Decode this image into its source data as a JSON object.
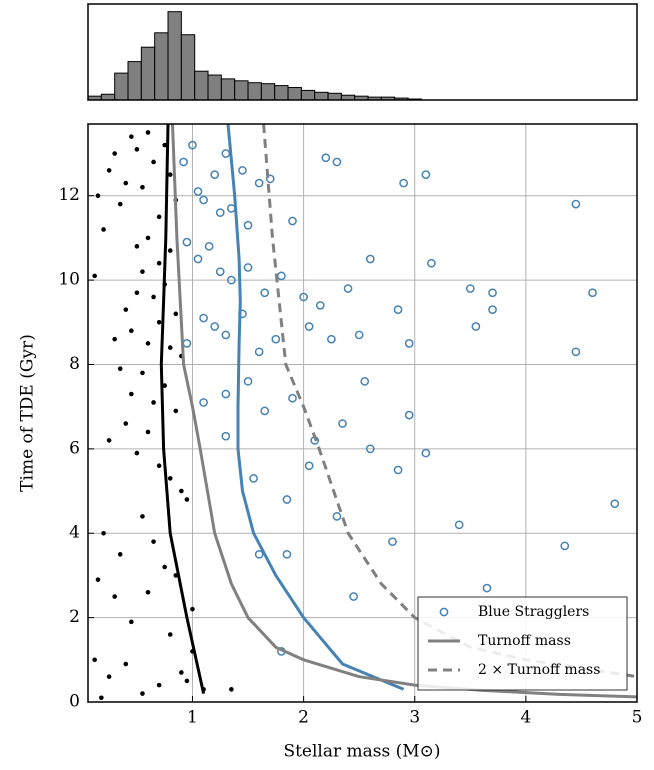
{
  "chart_data": [
    {
      "type": "histogram",
      "color": "#808080",
      "bins": [
        0.06,
        0.18,
        0.3,
        0.42,
        0.54,
        0.66,
        0.78,
        0.9,
        1.02,
        1.14,
        1.26,
        1.38,
        1.5,
        1.62,
        1.74,
        1.86,
        1.98,
        2.1,
        2.22,
        2.34,
        2.46,
        2.58,
        2.7,
        2.82,
        2.94,
        3.06
      ],
      "values": [
        4,
        6,
        28,
        40,
        55,
        70,
        92,
        68,
        30,
        26,
        22,
        20,
        18,
        17,
        15,
        13,
        10,
        8,
        7,
        5,
        4,
        3,
        3,
        2,
        1
      ],
      "xlim": [
        0.06,
        5
      ],
      "ylim": [
        0,
        100
      ]
    },
    {
      "type": "scatter",
      "xlabel": "Stellar mass (M⊙)",
      "ylabel": "Time of TDE (Gyr)",
      "xlim": [
        0.06,
        5
      ],
      "ylim": [
        0,
        13.7
      ],
      "xticks": [
        1,
        2,
        3,
        4,
        5
      ],
      "yticks": [
        0,
        2,
        4,
        6,
        8,
        10,
        12
      ],
      "grid": true,
      "legend": "lower right",
      "series": [
        {
          "type": "scatter",
          "marker": "filled",
          "color": "#000000",
          "x": [
            0.12,
            0.15,
            0.2,
            0.25,
            0.3,
            0.35,
            0.4,
            0.45,
            0.5,
            0.55,
            0.6,
            0.65,
            0.7,
            0.75,
            0.8,
            0.85,
            0.5,
            0.55,
            0.6,
            0.65,
            0.7,
            0.75,
            0.8,
            0.85,
            0.4,
            0.45,
            0.5,
            0.6,
            0.7,
            0.8,
            0.3,
            0.35,
            0.45,
            0.55,
            0.65,
            0.75,
            0.85,
            0.9,
            0.25,
            0.4,
            0.5,
            0.6,
            0.7,
            0.8,
            0.9,
            0.95,
            0.2,
            0.35,
            0.55,
            0.65,
            0.75,
            0.85,
            1.0,
            0.15,
            0.3,
            0.45,
            0.6,
            0.8,
            1.0,
            0.12,
            0.25,
            0.4,
            0.7,
            0.9,
            1.1,
            0.18,
            0.55,
            0.95,
            1.35
          ],
          "values": [
            10.1,
            12.0,
            11.2,
            12.6,
            13.0,
            11.8,
            12.3,
            13.4,
            13.1,
            12.2,
            13.5,
            12.8,
            11.5,
            13.2,
            12.5,
            11.9,
            10.8,
            10.2,
            11.0,
            9.6,
            10.4,
            9.9,
            10.7,
            9.2,
            9.3,
            8.8,
            9.7,
            8.5,
            9.0,
            8.4,
            8.6,
            7.9,
            7.3,
            7.8,
            7.1,
            7.5,
            6.9,
            8.2,
            6.2,
            6.6,
            5.9,
            6.4,
            5.6,
            5.3,
            5.0,
            4.8,
            4.0,
            3.5,
            4.4,
            3.8,
            3.2,
            3.0,
            2.2,
            2.9,
            2.5,
            1.9,
            2.6,
            1.6,
            1.2,
            1.0,
            0.6,
            0.9,
            0.4,
            0.7,
            0.3,
            0.1,
            0.2,
            0.5,
            0.3
          ]
        },
        {
          "type": "scatter",
          "marker": "open",
          "name": "Blue Stragglers",
          "color": "#4682b4",
          "x": [
            0.92,
            1.0,
            1.05,
            1.1,
            1.2,
            1.25,
            1.3,
            1.35,
            1.45,
            1.5,
            1.6,
            1.7,
            1.9,
            2.2,
            2.3,
            2.9,
            3.1,
            4.45,
            0.95,
            1.05,
            1.15,
            1.25,
            1.35,
            1.5,
            1.65,
            1.8,
            2.0,
            2.15,
            2.4,
            2.6,
            2.85,
            3.15,
            3.5,
            3.7,
            4.6,
            0.95,
            1.1,
            1.2,
            1.3,
            1.45,
            1.6,
            1.75,
            2.05,
            2.25,
            2.5,
            2.95,
            3.55,
            3.7,
            4.45,
            1.1,
            1.3,
            1.5,
            1.65,
            1.9,
            2.1,
            2.35,
            2.55,
            2.95,
            3.1,
            1.3,
            1.55,
            1.85,
            2.05,
            2.3,
            2.6,
            2.85,
            3.4,
            4.35,
            4.8,
            1.6,
            1.85,
            2.45,
            2.8,
            3.65,
            1.8
          ],
          "values": [
            12.8,
            13.2,
            12.1,
            11.9,
            12.5,
            11.6,
            13.0,
            11.7,
            12.6,
            11.3,
            12.3,
            12.4,
            11.4,
            12.9,
            12.8,
            12.3,
            12.5,
            11.8,
            10.9,
            10.5,
            10.8,
            10.2,
            10.0,
            10.3,
            9.7,
            10.1,
            9.6,
            9.4,
            9.8,
            10.5,
            9.3,
            10.4,
            9.8,
            9.7,
            9.7,
            8.5,
            9.1,
            8.9,
            8.7,
            9.2,
            8.3,
            8.6,
            8.9,
            8.6,
            8.7,
            8.5,
            8.9,
            9.3,
            8.3,
            7.1,
            7.3,
            7.6,
            6.9,
            7.2,
            6.2,
            6.6,
            7.6,
            6.8,
            5.9,
            6.3,
            5.3,
            4.8,
            5.6,
            4.4,
            6.0,
            5.5,
            4.2,
            3.7,
            4.7,
            3.5,
            3.5,
            2.5,
            3.8,
            2.7,
            1.2
          ]
        },
        {
          "type": "line",
          "color": "#000000",
          "x": [
            0.78,
            0.76,
            0.74,
            0.72,
            0.74,
            0.8,
            0.95,
            1.1
          ],
          "values": [
            13.7,
            11,
            9.5,
            8,
            6,
            4,
            2,
            0.2
          ]
        },
        {
          "type": "line",
          "color": "#4682b4",
          "x": [
            1.32,
            1.38,
            1.42,
            1.43,
            1.42,
            1.41,
            1.41,
            1.45,
            1.55,
            1.75,
            2.0,
            2.35,
            2.9
          ],
          "values": [
            13.7,
            12,
            10.5,
            9.5,
            8.5,
            7,
            6,
            5,
            4,
            3,
            2,
            0.9,
            0.3
          ]
        },
        {
          "type": "line",
          "name": "Turnoff mass",
          "color": "#808080",
          "x": [
            0.82,
            0.86,
            0.92,
            1.0,
            1.07,
            1.2,
            1.35,
            1.5,
            1.75,
            2.0,
            2.5,
            3.0,
            3.6,
            4.3,
            5.0
          ],
          "values": [
            13.7,
            11,
            8,
            7,
            6,
            4,
            2.8,
            2,
            1.3,
            1,
            0.6,
            0.4,
            0.28,
            0.18,
            0.12
          ]
        },
        {
          "type": "line",
          "name": "2 × Turnoff mass",
          "color": "#808080",
          "dashed": true,
          "x": [
            1.64,
            1.72,
            1.84,
            2.0,
            2.14,
            2.4,
            2.7,
            3.0,
            3.5,
            4.0,
            5.0
          ],
          "values": [
            13.7,
            11,
            8,
            7,
            6,
            4,
            2.8,
            2,
            1.3,
            1,
            0.6
          ]
        }
      ]
    }
  ]
}
